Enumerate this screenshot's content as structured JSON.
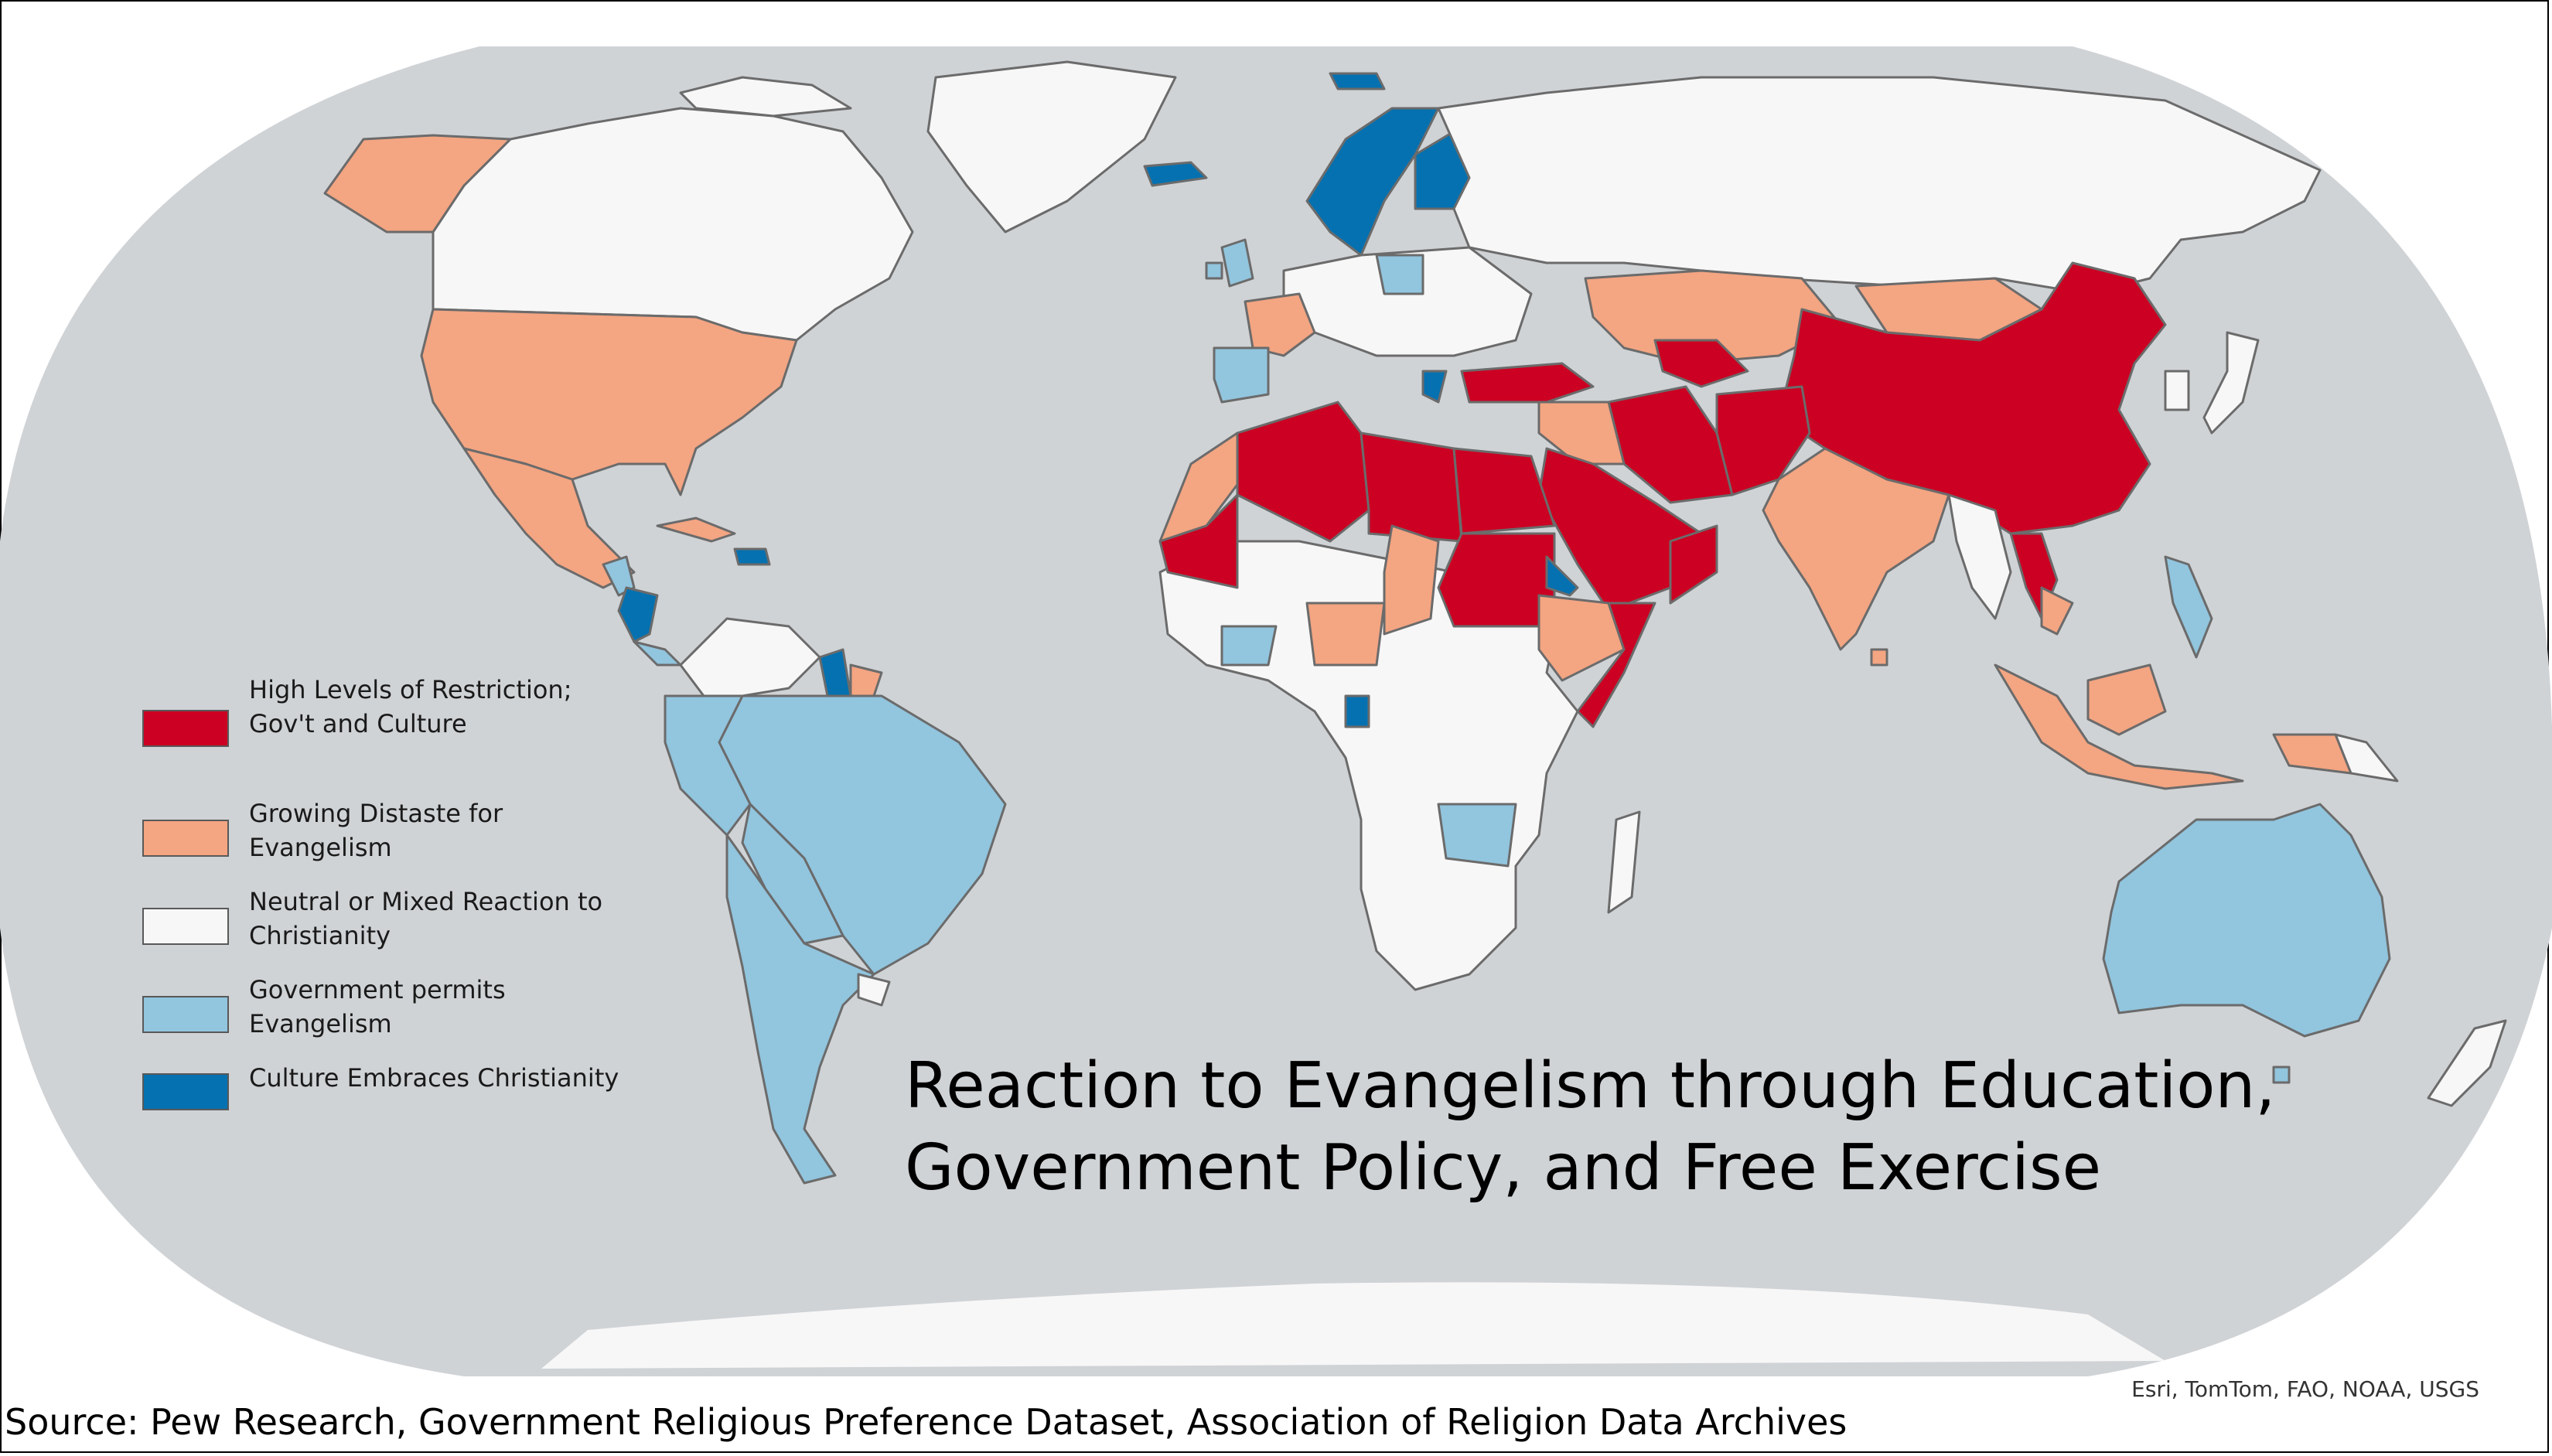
{
  "map": {
    "ocean_color": "#d0d3d6",
    "border_color": "#6b6b6b",
    "background_color": "#ffffff"
  },
  "legend": {
    "items": [
      {
        "line1": "High Levels of Restriction;",
        "line2": "Gov't and Culture",
        "color": "#cc0022"
      },
      {
        "line1": "Growing Distaste for",
        "line2": "Evangelism",
        "color": "#f4a582"
      },
      {
        "line1": "Neutral or Mixed Reaction to",
        "line2": "Christianity",
        "color": "#f7f7f7"
      },
      {
        "line1": "Government permits",
        "line2": "Evangelism",
        "color": "#92c5de"
      },
      {
        "line1": "Culture Embraces Christianity",
        "line2": "",
        "color": "#0571b0"
      }
    ]
  },
  "title": {
    "line1": "Reaction to Evangelism through Education,",
    "line2": "Government Policy, and Free Exercise"
  },
  "attribution": "Esri, TomTom, FAO, NOAA, USGS",
  "source": "Source: Pew Research, Government Religious Preference Dataset, Association of Religion Data Archives"
}
